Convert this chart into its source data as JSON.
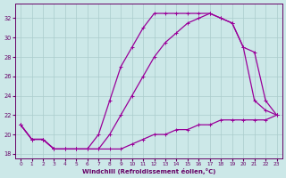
{
  "xlabel": "Windchill (Refroidissement éolien,°C)",
  "background_color": "#cce8e8",
  "grid_color": "#aacccc",
  "line_color": "#990099",
  "x_ticks": [
    0,
    1,
    2,
    3,
    4,
    5,
    6,
    7,
    8,
    9,
    10,
    11,
    12,
    13,
    14,
    15,
    16,
    17,
    18,
    19,
    20,
    21,
    22,
    23
  ],
  "ylim": [
    17.5,
    33.5
  ],
  "xlim": [
    -0.5,
    23.5
  ],
  "yticks": [
    18,
    20,
    22,
    24,
    26,
    28,
    30,
    32
  ],
  "curve1_x": [
    0,
    1,
    2,
    3,
    4,
    5,
    6,
    7,
    8,
    9,
    10,
    11,
    12,
    13,
    14,
    15,
    16,
    17,
    18,
    19,
    20,
    21,
    22,
    23
  ],
  "curve1_y": [
    21.0,
    19.5,
    19.5,
    18.5,
    18.5,
    18.5,
    18.5,
    18.5,
    18.5,
    18.5,
    19.0,
    19.5,
    20.0,
    20.0,
    20.5,
    20.5,
    21.0,
    21.0,
    21.5,
    21.5,
    21.5,
    21.5,
    21.5,
    22.0
  ],
  "curve2_x": [
    0,
    1,
    2,
    3,
    4,
    5,
    6,
    7,
    8,
    9,
    10,
    11,
    12,
    13,
    14,
    15,
    16,
    17,
    18,
    19,
    20,
    21,
    22,
    23
  ],
  "curve2_y": [
    21.0,
    19.5,
    19.5,
    18.5,
    18.5,
    18.5,
    18.5,
    18.5,
    20.0,
    22.0,
    24.0,
    26.0,
    28.0,
    29.5,
    30.5,
    31.5,
    32.0,
    32.5,
    32.0,
    31.5,
    29.0,
    28.5,
    23.5,
    22.0
  ],
  "curve3_x": [
    0,
    1,
    2,
    3,
    4,
    5,
    6,
    7,
    8,
    9,
    10,
    11,
    12,
    13,
    14,
    15,
    16,
    17,
    18,
    19,
    20,
    21,
    22,
    23
  ],
  "curve3_y": [
    21.0,
    19.5,
    19.5,
    18.5,
    18.5,
    18.5,
    18.5,
    20.0,
    23.5,
    27.0,
    29.0,
    31.0,
    32.5,
    32.5,
    32.5,
    32.5,
    32.5,
    32.5,
    32.0,
    31.5,
    29.0,
    23.5,
    22.5,
    22.0
  ]
}
